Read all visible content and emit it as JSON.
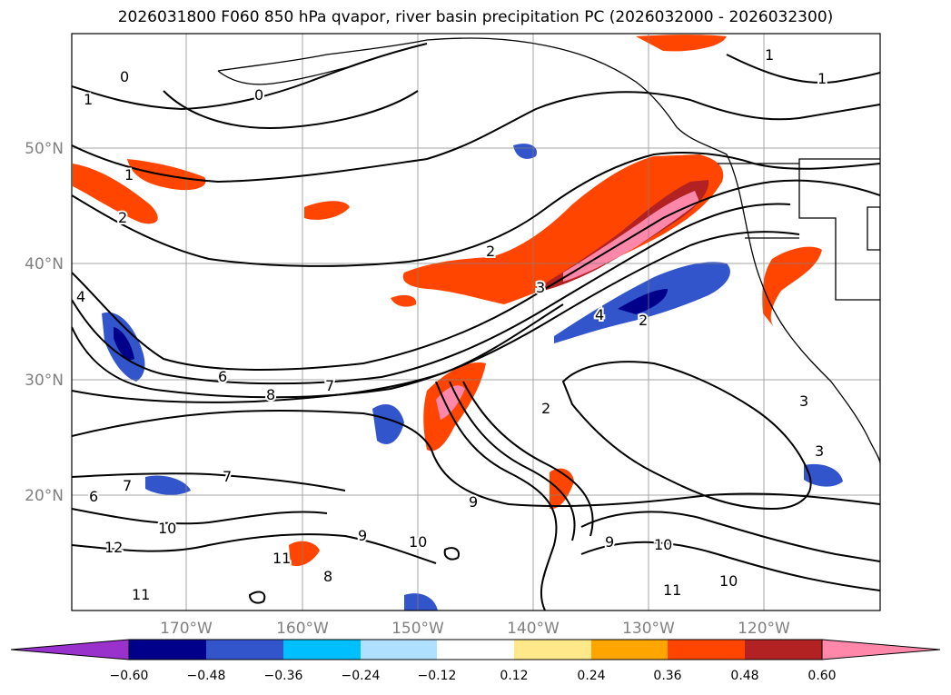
{
  "title": "2026031800 F060 850 hPa qvapor, river basin precipitation PC (2026032000 - 2026032300)",
  "map": {
    "lat_labels": [
      "50°N",
      "40°N",
      "30°N",
      "20°N"
    ],
    "lon_labels": [
      "170°W",
      "160°W",
      "150°W",
      "140°W",
      "130°W",
      "120°W"
    ]
  },
  "contour_labels": [
    "0",
    "0",
    "1",
    "1",
    "1",
    "1",
    "2",
    "2",
    "2",
    "2",
    "3",
    "3",
    "3",
    "4",
    "4",
    "6",
    "6",
    "7",
    "7",
    "7",
    "8",
    "9",
    "9",
    "9",
    "10",
    "10",
    "10",
    "10",
    "11",
    "11",
    "11",
    "12",
    "8"
  ],
  "colorbar": {
    "ticks": [
      "−0.60",
      "−0.48",
      "−0.36",
      "−0.24",
      "−0.12",
      "0.12",
      "0.24",
      "0.36",
      "0.48",
      "0.60"
    ],
    "colors": [
      "#9932cc",
      "#00008b",
      "#3355cc",
      "#00bfff",
      "#b0e0ff",
      "#ffffff",
      "#ffe88a",
      "#ffa500",
      "#ff4500",
      "#b22222",
      "#ff88aa",
      "#ff88aa"
    ]
  },
  "colors": {
    "coast": "#000000",
    "grid": "#808080",
    "label": "#808080"
  }
}
